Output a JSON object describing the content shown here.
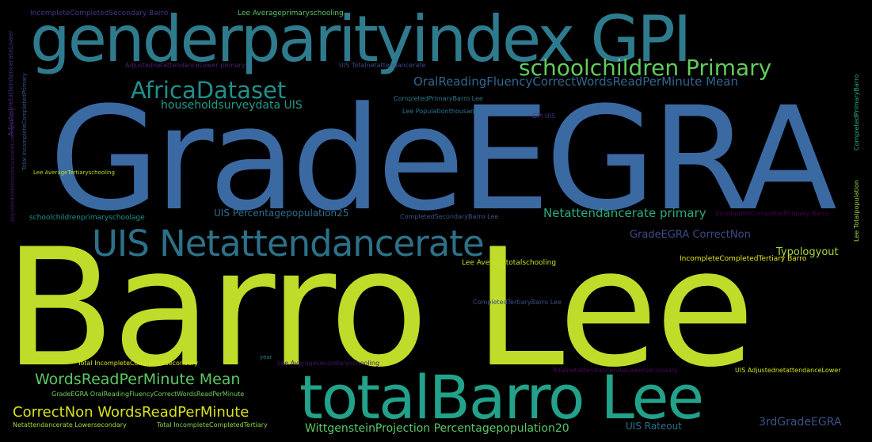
{
  "words": [
    {
      "text": "GradeEGRA",
      "color": "#3b6aa3"
    },
    {
      "text": "Barro Lee",
      "color": "#bfdc2a"
    },
    {
      "text": "genderparityindex GPI",
      "color": "#2f7b8e"
    },
    {
      "text": "totalBarro Lee",
      "color": "#22a28a"
    },
    {
      "text": "UIS Netattendancerate",
      "color": "#2c7189"
    },
    {
      "text": "schoolchildren Primary",
      "color": "#62cb5c"
    },
    {
      "text": "AfricaDataset",
      "color": "#20908d"
    },
    {
      "text": "householdsurveydata UIS",
      "color": "#1f9a8a"
    },
    {
      "text": "OralReadingFluencyCorrectWordsReadPerMinute Mean",
      "color": "#30688e"
    },
    {
      "text": "WordsReadPerMinute Mean",
      "color": "#5cc863"
    },
    {
      "text": "CorrectNon WordsReadPerMinute",
      "color": "#d8e219"
    },
    {
      "text": "Netattendancerate primary",
      "color": "#28ae80"
    },
    {
      "text": "GradeEGRA CorrectNon",
      "color": "#3e4a89"
    },
    {
      "text": "Typologyout",
      "color": "#a6db35"
    },
    {
      "text": "UIS Percentagepopulation25",
      "color": "#2e6e8e"
    },
    {
      "text": "WittgensteinProjection Percentagepopulation20",
      "color": "#5ac864"
    },
    {
      "text": "UIS Rateout",
      "color": "#2d708e"
    },
    {
      "text": "3rdGradeEGRA",
      "color": "#3b528b"
    },
    {
      "text": "IncompleteCompletedSecondary Barro",
      "color": "#443983"
    },
    {
      "text": "Lee Averageprimaryschooling",
      "color": "#56c667"
    },
    {
      "text": "AdjustednetattendancerateLower",
      "color": "#472c7a"
    },
    {
      "text": "AdjustednetattendanceLower primary",
      "color": "#482173"
    },
    {
      "text": "UIS Totalnetattendancerate",
      "color": "#3f4889"
    },
    {
      "text": "CompletedPrimaryBarro Lee",
      "color": "#2a788e"
    },
    {
      "text": "Lee Populationthousands",
      "color": "#2b758e"
    },
    {
      "text": "GPI UIS",
      "color": "#46327e"
    },
    {
      "text": "Lee AverageTertiaryschooling",
      "color": "#b5de2b"
    },
    {
      "text": "schoolchildrenprimaryschoolage",
      "color": "#1f948c"
    },
    {
      "text": "CompletedSecondaryBarro Lee",
      "color": "#3a548c"
    },
    {
      "text": "IncompleteCompletedPrimary Barro",
      "color": "#440154"
    },
    {
      "text": "Lee Averagetotalschooling",
      "color": "#c8e020"
    },
    {
      "text": "IncompleteCompletedTertiary Barro",
      "color": "#e5e419"
    },
    {
      "text": "CompletedTertiaryBarro Lee",
      "color": "#3d4e8a"
    },
    {
      "text": "Total IncompleteCompletedSecondary",
      "color": "#dde318"
    },
    {
      "text": "Lee Averagesecondaryschooling",
      "color": "#471365"
    },
    {
      "text": "TotalnetattendancerateLowersecondary",
      "color": "#46085c"
    },
    {
      "text": "UIS AdjustednetattendanceLower",
      "color": "#d2e21b"
    },
    {
      "text": "GradeEGRA OralReadingFluencyCorrectWordsReadPerMinute",
      "color": "#70cf57"
    },
    {
      "text": "Netattendancerate Lowersecondary",
      "color": "#a2da37"
    },
    {
      "text": "Total IncompleteCompletedTertiary",
      "color": "#88d548"
    },
    {
      "text": "year",
      "color": "#26818e"
    },
    {
      "text": "Total IncompleteCompletedPrimary",
      "color": "#38588c"
    },
    {
      "text": "CompletedPrimaryBarro",
      "color": "#29af7f"
    },
    {
      "text": "Lee Totalpopulation",
      "color": "#9dd93b"
    },
    {
      "text": "AdjustednetattendancerateLowerprimary",
      "color": "#481769"
    }
  ]
}
